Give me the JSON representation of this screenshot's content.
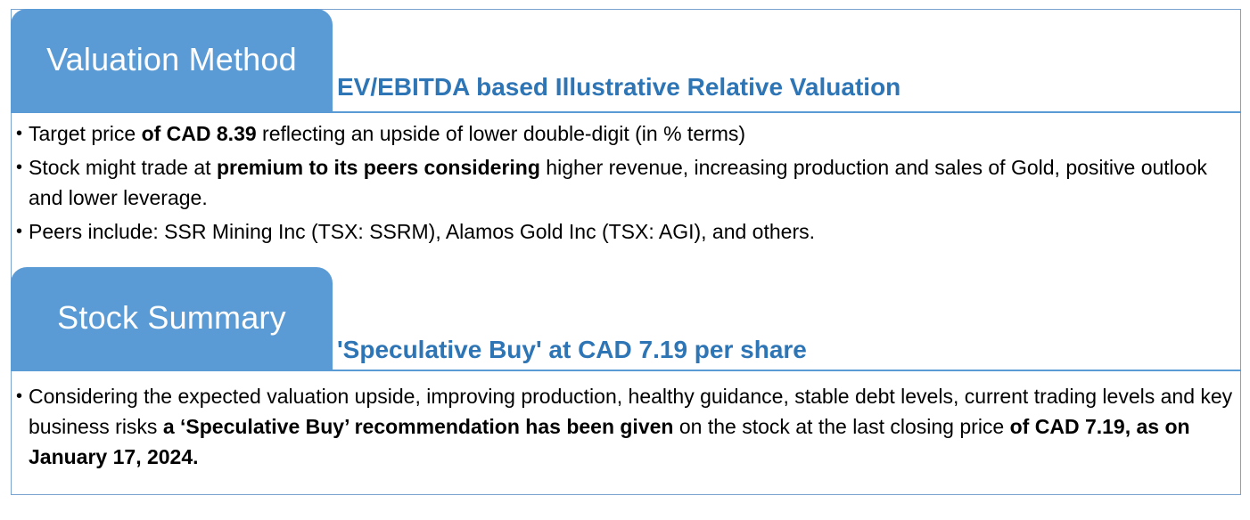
{
  "sections": [
    {
      "tab_title": "Valuation Method",
      "subtitle": "EV/EBITDA based Illustrative Relative Valuation",
      "bullets": [
        {
          "parts": [
            {
              "text": "Target price ",
              "bold": false
            },
            {
              "text": "of CAD 8.39",
              "bold": true
            },
            {
              "text": " reflecting an upside of lower double-digit (in % terms)",
              "bold": false
            }
          ]
        },
        {
          "parts": [
            {
              "text": "Stock might trade at ",
              "bold": false
            },
            {
              "text": "premium to its peers considering",
              "bold": true
            },
            {
              "text": " higher revenue, increasing production and sales of Gold, positive outlook and lower leverage.",
              "bold": false
            }
          ]
        },
        {
          "parts": [
            {
              "text": "Peers include:  SSR Mining Inc (TSX: SSRM), Alamos Gold Inc (TSX: AGI), and others.",
              "bold": false
            }
          ]
        }
      ]
    },
    {
      "tab_title": "Stock Summary",
      "subtitle": "'Speculative Buy' at CAD 7.19 per share",
      "bullets": [
        {
          "parts": [
            {
              "text": "Considering the expected valuation upside, improving production, healthy guidance, stable debt levels, current trading levels and key business risks ",
              "bold": false
            },
            {
              "text": "a ‘Speculative Buy’ recommendation has been given",
              "bold": true
            },
            {
              "text": " on the stock at the last closing price ",
              "bold": false
            },
            {
              "text": "of CAD 7.19, as on January  17, 2024.",
              "bold": true
            }
          ]
        }
      ]
    }
  ],
  "bullet_symbol": "•",
  "colors": {
    "tab_fill": "#5b9bd5",
    "subtitle_text": "#2e75b6",
    "frame_border": "#7aa3cf"
  }
}
